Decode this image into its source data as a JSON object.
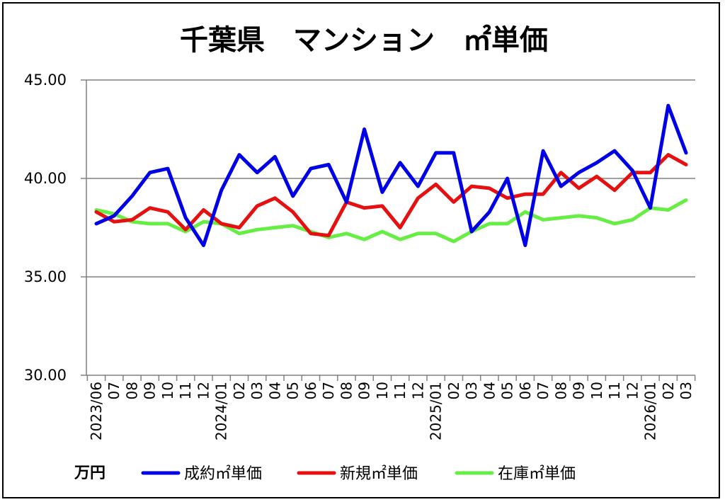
{
  "chart_data": {
    "type": "line",
    "title": "千葉県　マンション　㎡単価",
    "unit_label": "万円",
    "ylim": [
      30,
      45
    ],
    "yticks": [
      "30.00",
      "35.00",
      "40.00",
      "45.00"
    ],
    "grid": true,
    "legend_position": "bottom",
    "categories": [
      "2023/06",
      "07",
      "08",
      "09",
      "10",
      "11",
      "12",
      "2024/01",
      "02",
      "03",
      "04",
      "05",
      "06",
      "07",
      "08",
      "09",
      "10",
      "11",
      "12",
      "2025/01",
      "02",
      "03",
      "04",
      "05",
      "06",
      "07",
      "08",
      "09",
      "10",
      "11",
      "12",
      "2026/01",
      "02",
      "03"
    ],
    "series": [
      {
        "name": "成約㎡単価",
        "color": "#0000e6",
        "values": [
          37.7,
          38.1,
          39.1,
          40.3,
          40.5,
          38.0,
          36.6,
          39.4,
          41.2,
          40.3,
          41.1,
          39.1,
          40.5,
          40.7,
          38.8,
          42.5,
          39.3,
          40.8,
          39.6,
          41.3,
          41.3,
          37.3,
          38.3,
          40.0,
          36.6,
          41.4,
          39.6,
          40.3,
          40.8,
          41.4,
          40.4,
          38.5,
          43.7,
          41.3
        ]
      },
      {
        "name": "新規㎡単価",
        "color": "#e61010",
        "values": [
          38.3,
          37.8,
          37.9,
          38.5,
          38.3,
          37.4,
          38.4,
          37.7,
          37.5,
          38.6,
          39.0,
          38.3,
          37.2,
          37.1,
          38.8,
          38.5,
          38.6,
          37.5,
          39.0,
          39.7,
          38.8,
          39.6,
          39.5,
          39.0,
          39.2,
          39.2,
          40.3,
          39.5,
          40.1,
          39.4,
          40.3,
          40.3,
          41.2,
          40.7
        ]
      },
      {
        "name": "在庫㎡単価",
        "color": "#66ee44",
        "values": [
          38.4,
          38.2,
          37.8,
          37.7,
          37.7,
          37.3,
          37.8,
          37.7,
          37.2,
          37.4,
          37.5,
          37.6,
          37.3,
          37.0,
          37.2,
          36.9,
          37.3,
          36.9,
          37.2,
          37.2,
          36.8,
          37.3,
          37.7,
          37.7,
          38.3,
          37.9,
          38.0,
          38.1,
          38.0,
          37.7,
          37.9,
          38.5,
          38.4,
          38.9
        ]
      }
    ]
  }
}
